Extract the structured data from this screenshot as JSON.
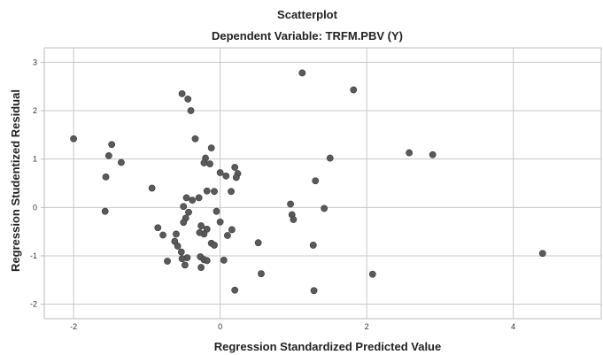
{
  "chart_data": {
    "type": "scatter",
    "title": "Scatterplot",
    "subtitle": "Dependent Variable: TRFM.PBV (Y)",
    "xlabel": "Regression Standardized Predicted Value",
    "ylabel": "Regression Studentized Residual",
    "xlim": [
      -2.4,
      5.2
    ],
    "ylim": [
      -2.3,
      3.3
    ],
    "xticks": [
      -2,
      0,
      2,
      4
    ],
    "yticks": [
      -2,
      -1,
      0,
      1,
      2,
      3
    ],
    "xtick_labels": [
      "-2",
      "0",
      "2",
      "4"
    ],
    "ytick_labels": [
      "-2",
      "-1",
      "0",
      "1",
      "2",
      "3"
    ],
    "grid": true,
    "marker_color": "#5a5a5a",
    "grid_color": "#c8c8c8",
    "frame_color": "#bdbdbd",
    "points": [
      {
        "x": -2.0,
        "y": 1.42
      },
      {
        "x": -1.48,
        "y": 1.3
      },
      {
        "x": -1.52,
        "y": 1.07
      },
      {
        "x": -1.35,
        "y": 0.93
      },
      {
        "x": -1.56,
        "y": 0.63
      },
      {
        "x": -1.57,
        "y": -0.08
      },
      {
        "x": -0.93,
        "y": 0.4
      },
      {
        "x": -0.85,
        "y": -0.42
      },
      {
        "x": -0.78,
        "y": -0.57
      },
      {
        "x": -0.72,
        "y": -1.11
      },
      {
        "x": -0.52,
        "y": 2.35
      },
      {
        "x": -0.44,
        "y": 2.24
      },
      {
        "x": -0.4,
        "y": 2.0
      },
      {
        "x": -0.34,
        "y": 1.42
      },
      {
        "x": -0.12,
        "y": 1.23
      },
      {
        "x": -0.2,
        "y": 1.02
      },
      {
        "x": -0.22,
        "y": 0.92
      },
      {
        "x": -0.14,
        "y": 0.9
      },
      {
        "x": 0.0,
        "y": 0.72
      },
      {
        "x": 0.08,
        "y": 0.65
      },
      {
        "x": 0.2,
        "y": 0.83
      },
      {
        "x": 0.24,
        "y": 0.7
      },
      {
        "x": 0.22,
        "y": 0.62
      },
      {
        "x": 0.15,
        "y": 0.33
      },
      {
        "x": -0.18,
        "y": 0.34
      },
      {
        "x": -0.08,
        "y": 0.33
      },
      {
        "x": -0.46,
        "y": 0.2
      },
      {
        "x": -0.38,
        "y": 0.15
      },
      {
        "x": -0.29,
        "y": 0.2
      },
      {
        "x": -0.5,
        "y": 0.02
      },
      {
        "x": -0.43,
        "y": -0.1
      },
      {
        "x": -0.47,
        "y": -0.22
      },
      {
        "x": -0.5,
        "y": -0.31
      },
      {
        "x": -0.05,
        "y": -0.08
      },
      {
        "x": 0.0,
        "y": -0.3
      },
      {
        "x": 0.1,
        "y": -0.58
      },
      {
        "x": 0.16,
        "y": -0.46
      },
      {
        "x": -0.26,
        "y": -0.38
      },
      {
        "x": -0.18,
        "y": -0.45
      },
      {
        "x": -0.22,
        "y": -0.55
      },
      {
        "x": -0.28,
        "y": -0.52
      },
      {
        "x": -0.6,
        "y": -0.55
      },
      {
        "x": -0.62,
        "y": -0.7
      },
      {
        "x": -0.58,
        "y": -0.8
      },
      {
        "x": -0.12,
        "y": -0.74
      },
      {
        "x": -0.08,
        "y": -0.78
      },
      {
        "x": -0.53,
        "y": -0.92
      },
      {
        "x": -0.45,
        "y": -1.04
      },
      {
        "x": -0.52,
        "y": -1.06
      },
      {
        "x": -0.27,
        "y": -1.02
      },
      {
        "x": -0.22,
        "y": -1.08
      },
      {
        "x": -0.18,
        "y": -1.1
      },
      {
        "x": 0.05,
        "y": -1.09
      },
      {
        "x": -0.48,
        "y": -1.19
      },
      {
        "x": -0.26,
        "y": -1.24
      },
      {
        "x": 0.2,
        "y": -1.71
      },
      {
        "x": 0.52,
        "y": -0.73
      },
      {
        "x": 0.56,
        "y": -1.37
      },
      {
        "x": 0.96,
        "y": 0.07
      },
      {
        "x": 0.98,
        "y": -0.15
      },
      {
        "x": 1.0,
        "y": -0.25
      },
      {
        "x": 1.12,
        "y": 2.78
      },
      {
        "x": 1.3,
        "y": 0.55
      },
      {
        "x": 1.42,
        "y": -0.02
      },
      {
        "x": 1.5,
        "y": 1.02
      },
      {
        "x": 1.27,
        "y": -0.78
      },
      {
        "x": 1.28,
        "y": -1.72
      },
      {
        "x": 1.82,
        "y": 2.43
      },
      {
        "x": 2.08,
        "y": -1.38
      },
      {
        "x": 2.58,
        "y": 1.13
      },
      {
        "x": 2.9,
        "y": 1.09
      },
      {
        "x": 4.4,
        "y": -0.95
      }
    ]
  }
}
